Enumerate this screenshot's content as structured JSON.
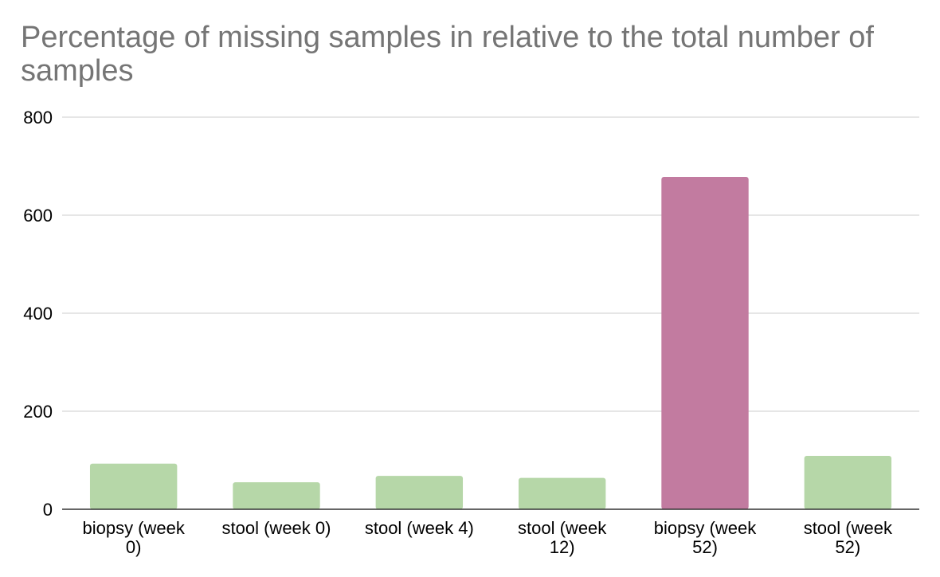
{
  "chart_data": {
    "type": "bar",
    "title": "Percentage of missing samples in relative to the total number of samples",
    "xlabel": "",
    "ylabel": "",
    "categories": [
      [
        "biopsy (week",
        "0)"
      ],
      [
        "stool (week 0)"
      ],
      [
        "stool (week 4)"
      ],
      [
        "stool (week",
        "12)"
      ],
      [
        "biopsy (week",
        "52)"
      ],
      [
        "stool (week",
        "52)"
      ]
    ],
    "values": [
      93,
      55,
      68,
      64,
      678,
      109
    ],
    "bar_colors": [
      "#b6d7a8",
      "#b6d7a8",
      "#b6d7a8",
      "#b6d7a8",
      "#c27ba0",
      "#b6d7a8"
    ],
    "ylim": [
      0,
      800
    ],
    "yticks": [
      0,
      200,
      400,
      600,
      800
    ],
    "grid": true,
    "legend": "none"
  }
}
